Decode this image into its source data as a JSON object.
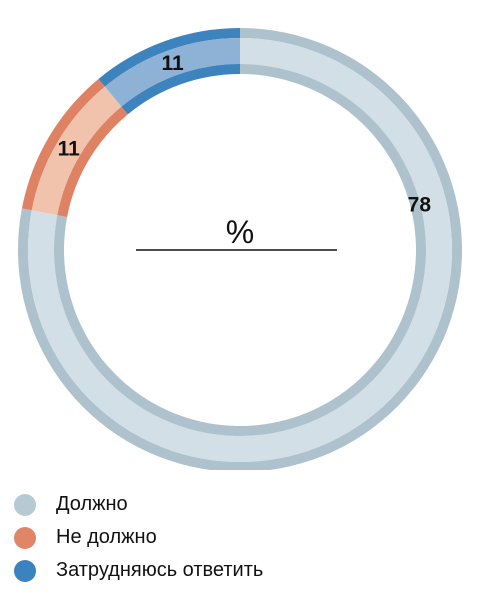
{
  "chart_data": {
    "type": "pie",
    "unit_label": "%",
    "categories": [
      "Должно",
      "Не должно",
      "Затрудняюсь ответить"
    ],
    "values": [
      78,
      11,
      11
    ],
    "colors": {
      "Должно": {
        "fill": "#d2dfe6",
        "rim": "#aec2cd"
      },
      "Не должно": {
        "fill": "#f1c3ad",
        "rim": "#df8264"
      },
      "Затрудняюсь ответить": {
        "fill": "#8eb2d6",
        "rim": "#3d84bf"
      }
    },
    "legend_position": "bottom-left"
  }
}
